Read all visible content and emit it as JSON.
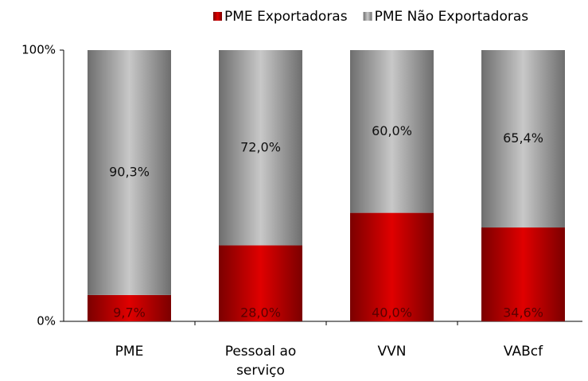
{
  "chart_data": {
    "type": "stacked_bar",
    "categories": [
      "PME",
      "Pessoal ao serviço",
      "VVN",
      "VABcf"
    ],
    "series": [
      {
        "name": "PME Exportadoras",
        "color": "#e00000",
        "values": [
          9.7,
          28.0,
          40.0,
          34.6
        ],
        "value_labels": [
          "9,7%",
          "28,0%",
          "40,0%",
          "34,6%"
        ]
      },
      {
        "name": "PME Não Exportadoras",
        "color": "#c8c8c8",
        "values": [
          90.3,
          72.0,
          60.0,
          65.4
        ],
        "value_labels": [
          "90,3%",
          "72,0%",
          "60,0%",
          "65,4%"
        ]
      }
    ],
    "ylim": [
      0,
      100
    ],
    "yticks": [
      {
        "value": 0,
        "label": "0%"
      },
      {
        "value": 100,
        "label": "100%"
      }
    ],
    "legend": "top"
  }
}
